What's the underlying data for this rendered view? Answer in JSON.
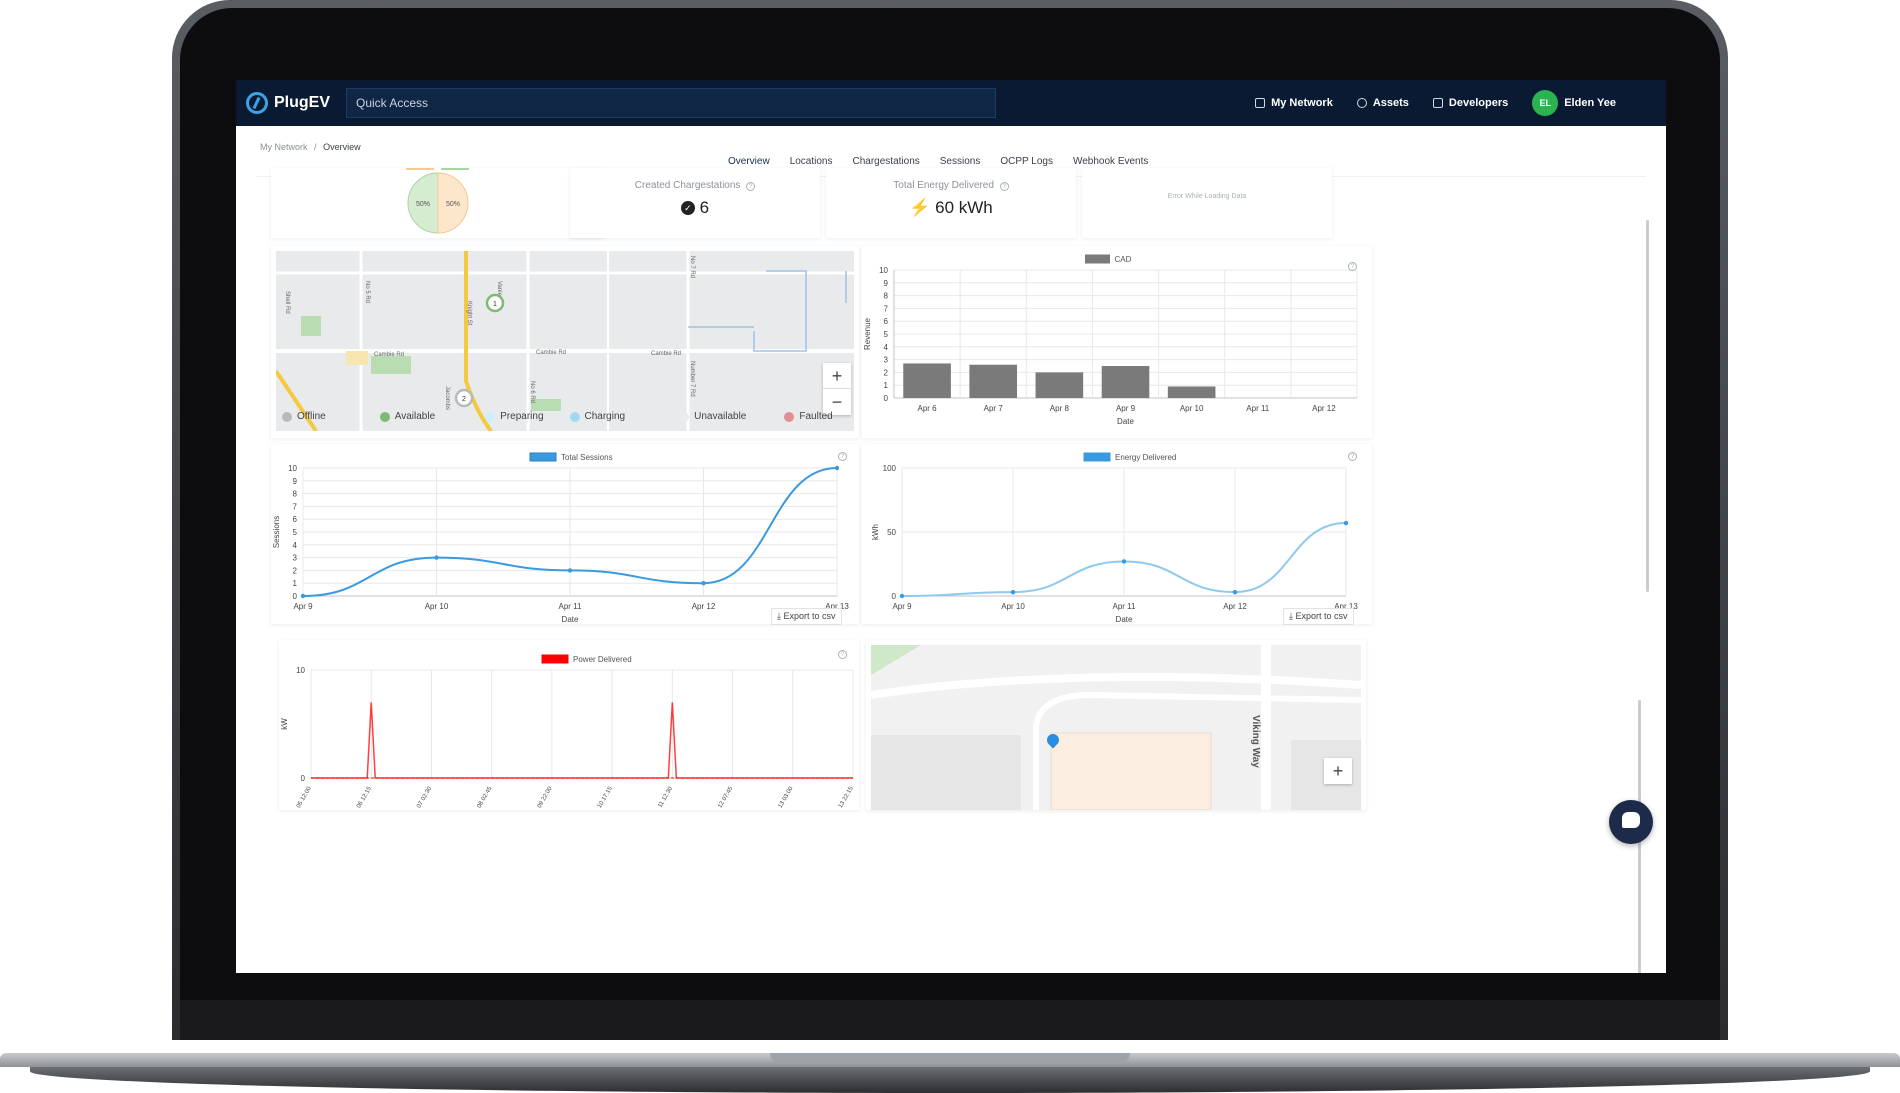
{
  "app": {
    "brand": "PlugEV",
    "quick_access": "Quick Access",
    "nav": [
      {
        "label": "My Network",
        "icon": "building-icon"
      },
      {
        "label": "Assets",
        "icon": "users-icon"
      },
      {
        "label": "Developers",
        "icon": "code-window-icon"
      }
    ],
    "user": {
      "initials": "EL",
      "name": "Elden Yee"
    }
  },
  "breadcrumb": {
    "root": "My Network",
    "separator": "/",
    "current": "Overview"
  },
  "tabs": [
    "Overview",
    "Locations",
    "Chargestations",
    "Sessions",
    "OCPP Logs",
    "Webhook Events"
  ],
  "active_tab": "Overview",
  "stats": {
    "donut": {
      "left_label": "50%",
      "right_label": "50%"
    },
    "created": {
      "title": "Created Chargestations",
      "value": "6"
    },
    "energy": {
      "title": "Total Energy Delivered",
      "value": "60 kWh"
    },
    "error": {
      "text": "Error While Loading Data"
    }
  },
  "map1": {
    "streets": [
      "Shell Rd",
      "No 5 Rd",
      "Knight St",
      "Vanier",
      "Cambie Rd",
      "Cambie Rd",
      "Cambie Rd",
      "No 7 Rd",
      "Number 7 Rd",
      "No 6 Rd",
      "Jacombs"
    ],
    "clusters": [
      "1",
      "2"
    ],
    "legend": [
      {
        "label": "Offline",
        "color": "#b7b9bc"
      },
      {
        "label": "Available",
        "color": "#7dbb75"
      },
      {
        "label": "Preparing",
        "color": "#cfeefc"
      },
      {
        "label": "Charging",
        "color": "#9fdaf3"
      },
      {
        "label": "Unavailable",
        "color": "#ebebeb"
      },
      {
        "label": "Faulted",
        "color": "#e48d94"
      }
    ],
    "zoom_in": "+",
    "zoom_out": "−"
  },
  "map2": {
    "street": "Viking Way",
    "zoom_in": "+"
  },
  "export_label": "Export to csv",
  "chart_data": [
    {
      "type": "bar",
      "legend": "CAD",
      "categories": [
        "Apr 6",
        "Apr 7",
        "Apr 8",
        "Apr 9",
        "Apr 10",
        "Apr 11",
        "Apr 12"
      ],
      "series": [
        {
          "name": "CAD",
          "values": [
            2.7,
            2.6,
            2.0,
            2.5,
            0.9,
            0,
            0
          ]
        }
      ],
      "xlabel": "Date",
      "ylabel": "Revenue",
      "ylim": [
        0,
        10
      ],
      "yticks": [
        "0",
        "1",
        "2",
        "3",
        "4",
        "5",
        "6",
        "7",
        "8",
        "9",
        "10"
      ],
      "color": "#7a7a7a"
    },
    {
      "type": "line",
      "legend": "Total Sessions",
      "x": [
        "Apr 9",
        "Apr 10",
        "Apr 11",
        "Apr 12",
        "Apr 13"
      ],
      "series": [
        {
          "name": "Total Sessions",
          "values": [
            0,
            3,
            2,
            1,
            10
          ]
        }
      ],
      "xlabel": "Date",
      "ylabel": "Sessions",
      "ylim": [
        0,
        10
      ],
      "yticks": [
        "0",
        "1",
        "2",
        "3",
        "4",
        "5",
        "6",
        "7",
        "8",
        "9",
        "10"
      ],
      "color": "#3a9ae0"
    },
    {
      "type": "line",
      "legend": "Energy Delivered",
      "x": [
        "Apr 9",
        "Apr 10",
        "Apr 11",
        "Apr 12",
        "Apr 13"
      ],
      "series": [
        {
          "name": "Energy Delivered",
          "values": [
            0,
            3,
            27,
            3,
            57
          ]
        }
      ],
      "xlabel": "Date",
      "ylabel": "kWh",
      "ylim": [
        0,
        100
      ],
      "yticks": [
        "0",
        "50",
        "100"
      ],
      "color": "#3a9ae0"
    },
    {
      "type": "line",
      "legend": "Power Delivered",
      "x": [
        "05 12:00",
        "06 12:15",
        "07 02:30",
        "08 02:45",
        "09 22:00",
        "10 17:15",
        "11 12:30",
        "12 07:45",
        "13 03:00",
        "13 22:15"
      ],
      "series": [
        {
          "name": "Power Delivered",
          "values": [
            0,
            7,
            0,
            0,
            0,
            0,
            7,
            0,
            0,
            0
          ]
        }
      ],
      "ylabel": "kW",
      "ylim": [
        0,
        10
      ],
      "yticks": [
        "0",
        "10"
      ],
      "color": "#ff0000"
    }
  ]
}
